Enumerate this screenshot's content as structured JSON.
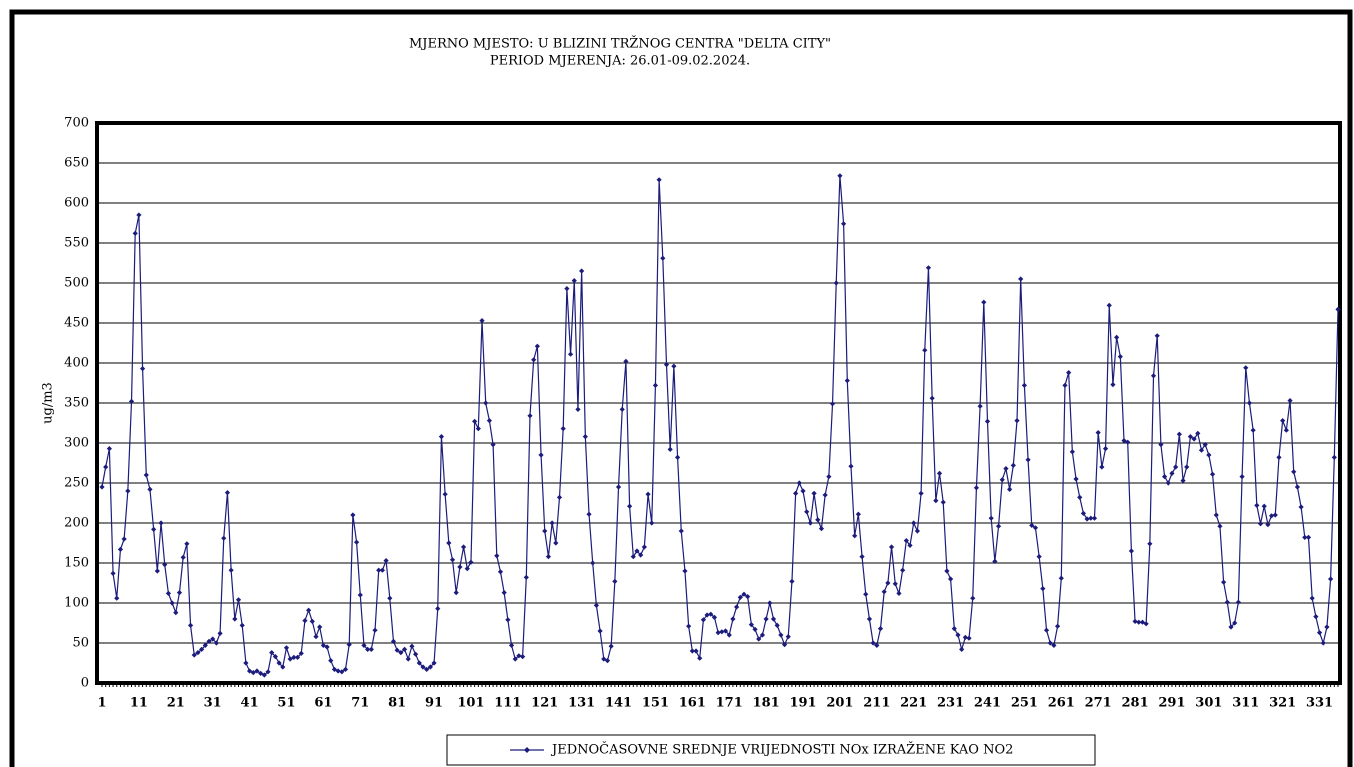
{
  "chart_data": {
    "type": "line",
    "title": "MJERNO MJESTO: U BLIZINI TRŽNOG CENTRA \"DELTA CITY\"",
    "subtitle": "PERIOD MJERENJA:  26.01-09.02.2024.",
    "y_label": "ug/m3",
    "categories": [
      "1",
      null,
      null,
      null,
      null,
      null,
      null,
      null,
      null,
      null,
      "11",
      null,
      null,
      null,
      null,
      null,
      null,
      null,
      null,
      null,
      "21",
      null,
      null,
      null,
      null,
      null,
      null,
      null,
      null,
      null,
      "31",
      null,
      null,
      null,
      null,
      null,
      null,
      null,
      null,
      null,
      "41",
      null,
      null,
      null,
      null,
      null,
      null,
      null,
      null,
      null,
      "51",
      null,
      null,
      null,
      null,
      null,
      null,
      null,
      null,
      null,
      "61",
      null,
      null,
      null,
      null,
      null,
      null,
      null,
      null,
      null,
      "71",
      null,
      null,
      null,
      null,
      null,
      null,
      null,
      null,
      null,
      "81",
      null,
      null,
      null,
      null,
      null,
      null,
      null,
      null,
      null,
      "91",
      null,
      null,
      null,
      null,
      null,
      null,
      null,
      null,
      null,
      "101",
      null,
      null,
      null,
      null,
      null,
      null,
      null,
      null,
      null,
      "111",
      null,
      null,
      null,
      null,
      null,
      null,
      null,
      null,
      null,
      "121",
      null,
      null,
      null,
      null,
      null,
      null,
      null,
      null,
      null,
      "131",
      null,
      null,
      null,
      null,
      null,
      null,
      null,
      null,
      null,
      "141",
      null,
      null,
      null,
      null,
      null,
      null,
      null,
      null,
      null,
      "151",
      null,
      null,
      null,
      null,
      null,
      null,
      null,
      null,
      null,
      "161",
      null,
      null,
      null,
      null,
      null,
      null,
      null,
      null,
      null,
      "171",
      null,
      null,
      null,
      null,
      null,
      null,
      null,
      null,
      null,
      "181",
      null,
      null,
      null,
      null,
      null,
      null,
      null,
      null,
      null,
      "191",
      null,
      null,
      null,
      null,
      null,
      null,
      null,
      null,
      null,
      "201",
      null,
      null,
      null,
      null,
      null,
      null,
      null,
      null,
      null,
      "211",
      null,
      null,
      null,
      null,
      null,
      null,
      null,
      null,
      null,
      "221",
      null,
      null,
      null,
      null,
      null,
      null,
      null,
      null,
      null,
      "231",
      null,
      null,
      null,
      null,
      null,
      null,
      null,
      null,
      null,
      "241",
      null,
      null,
      null,
      null,
      null,
      null,
      null,
      null,
      null,
      "251",
      null,
      null,
      null,
      null,
      null,
      null,
      null,
      null,
      null,
      "261",
      null,
      null,
      null,
      null,
      null,
      null,
      null,
      null,
      null,
      "271",
      null,
      null,
      null,
      null,
      null,
      null,
      null,
      null,
      null,
      "281",
      null,
      null,
      null,
      null,
      null,
      null,
      null,
      null,
      null,
      "291",
      null,
      null,
      null,
      null,
      null,
      null,
      null,
      null,
      null,
      "301",
      null,
      null,
      null,
      null,
      null,
      null,
      null,
      null,
      null,
      "311",
      null,
      null,
      null,
      null,
      null,
      null,
      null,
      null,
      null,
      "321",
      null,
      null,
      null,
      null,
      null,
      null,
      null,
      null,
      null,
      "331",
      null,
      null,
      null,
      null,
      null
    ],
    "series": [
      {
        "name": "JEDNOČASOVNE SREDNJE VRIJEDNOSTI NOx IZRAŽENE KAO NO2",
        "color": "#1c1c7c",
        "values": [
          245,
          270,
          293,
          137,
          106,
          167,
          180,
          240,
          352,
          562,
          585,
          393,
          260,
          242,
          192,
          140,
          200,
          148,
          112,
          100,
          88,
          113,
          157,
          174,
          72,
          35,
          38,
          42,
          47,
          52,
          55,
          50,
          62,
          181,
          238,
          141,
          80,
          104,
          72,
          25,
          15,
          13,
          15,
          12,
          10,
          14,
          38,
          33,
          25,
          20,
          44,
          30,
          32,
          32,
          37,
          78,
          91,
          77,
          58,
          70,
          47,
          45,
          28,
          17,
          15,
          14,
          17,
          48,
          210,
          176,
          110,
          47,
          42,
          42,
          66,
          141,
          141,
          153,
          106,
          52,
          41,
          38,
          42,
          30,
          46,
          36,
          25,
          20,
          17,
          20,
          25,
          93,
          308,
          236,
          175,
          154,
          113,
          145,
          170,
          143,
          151,
          327,
          318,
          453,
          350,
          328,
          298,
          159,
          139,
          113,
          79,
          47,
          30,
          34,
          33,
          132,
          334,
          404,
          421,
          285,
          190,
          158,
          200,
          175,
          232,
          318,
          493,
          411,
          503,
          342,
          515,
          308,
          211,
          150,
          97,
          65,
          30,
          28,
          46,
          127,
          245,
          342,
          402,
          221,
          158,
          165,
          160,
          170,
          236,
          200,
          372,
          629,
          531,
          398,
          292,
          396,
          282,
          190,
          140,
          71,
          40,
          40,
          31,
          79,
          85,
          86,
          82,
          63,
          64,
          65,
          60,
          80,
          95,
          107,
          111,
          108,
          73,
          67,
          55,
          60,
          80,
          100,
          80,
          72,
          60,
          48,
          58,
          127,
          237,
          250,
          240,
          214,
          200,
          237,
          204,
          193,
          235,
          258,
          349,
          500,
          634,
          574,
          378,
          271,
          184,
          211,
          158,
          111,
          80,
          50,
          47,
          68,
          114,
          125,
          170,
          124,
          112,
          141,
          178,
          172,
          200,
          190,
          237,
          416,
          519,
          356,
          228,
          262,
          226,
          140,
          130,
          68,
          60,
          42,
          57,
          56,
          106,
          244,
          346,
          476,
          327,
          206,
          152,
          196,
          254,
          268,
          242,
          272,
          328,
          505,
          372,
          279,
          197,
          194,
          158,
          118,
          66,
          50,
          47,
          71,
          131,
          372,
          388,
          289,
          255,
          232,
          212,
          205,
          206,
          206,
          313,
          270,
          293,
          472,
          373,
          432,
          408,
          303,
          301,
          165,
          77,
          76,
          76,
          74,
          174,
          384,
          434,
          298,
          258,
          250,
          262,
          270,
          311,
          253,
          270,
          308,
          305,
          312,
          291,
          298,
          285,
          261,
          210,
          196,
          126,
          101,
          70,
          75,
          101,
          258,
          394,
          350,
          316,
          222,
          199,
          221,
          198,
          209,
          210,
          282,
          328,
          316,
          353,
          264,
          245,
          220,
          182,
          182,
          106,
          83,
          63,
          50,
          70,
          130,
          282,
          467
        ]
      }
    ],
    "ylim": [
      0,
      700
    ],
    "yticks": [
      0,
      50,
      100,
      150,
      200,
      250,
      300,
      350,
      400,
      450,
      500,
      550,
      600,
      650,
      700
    ],
    "grid": true,
    "legend": "bottom"
  }
}
